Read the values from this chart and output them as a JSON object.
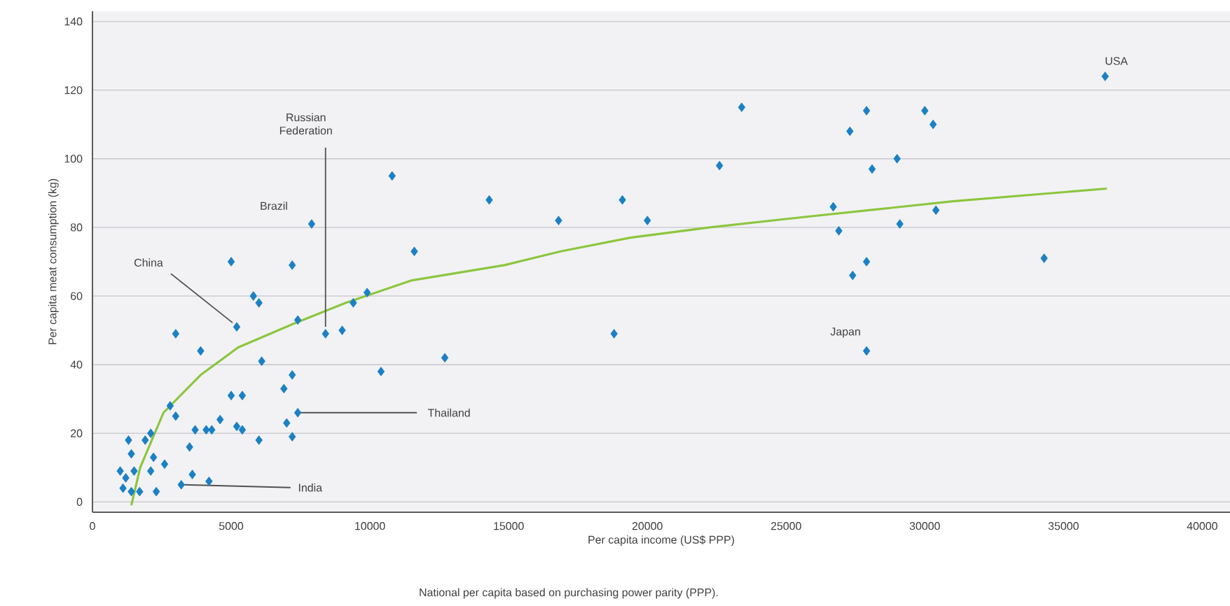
{
  "chart_data": {
    "type": "scatter",
    "xlabel": "Per capita income (US$ PPP)",
    "ylabel": "Per capita meat consumption (kg)",
    "xlim": [
      0,
      41000
    ],
    "ylim": [
      -3,
      143
    ],
    "xticks": [
      0,
      5000,
      10000,
      15000,
      20000,
      25000,
      30000,
      35000,
      40000
    ],
    "yticks": [
      0,
      20,
      40,
      60,
      80,
      100,
      120,
      140
    ],
    "grid": "y",
    "marker": "diamond",
    "series": [
      {
        "color": "#1b80c4",
        "x": [
          10800,
          14300,
          7900,
          11600,
          5000,
          7200,
          5800,
          6000,
          9900,
          9400,
          5200,
          7400,
          8400,
          9000,
          3000,
          3900,
          12700,
          6100,
          10400,
          7200,
          6900,
          5000,
          5400,
          2800,
          3000,
          7400,
          7000,
          7200,
          4600,
          5200,
          5400,
          3700,
          4100,
          4300,
          6000,
          3500,
          2100,
          1900,
          1300,
          1400,
          2200,
          2600,
          1000,
          1200,
          1500,
          3600,
          4200,
          3200,
          2300,
          1100,
          1400,
          1700,
          2100,
          23400,
          22600,
          16800,
          19100,
          20000,
          26700,
          26900,
          36500,
          27900,
          27300,
          30000,
          30300,
          29000,
          28100,
          29100,
          30400,
          27900,
          27400,
          34300,
          27900,
          18800
        ],
        "values": [
          95,
          88,
          81,
          73,
          70,
          69,
          60,
          58,
          61,
          58,
          51,
          53,
          49,
          50,
          49,
          44,
          42,
          41,
          38,
          37,
          33,
          31,
          31,
          28,
          25,
          26,
          23,
          19,
          24,
          22,
          21,
          21,
          21,
          21,
          18,
          16,
          20,
          18,
          18,
          14,
          13,
          11,
          9,
          7,
          9,
          8,
          6,
          5,
          3,
          4,
          3,
          3,
          9,
          115,
          98,
          82,
          88,
          82,
          86,
          79,
          124,
          114,
          108,
          114,
          110,
          100,
          97,
          81,
          85,
          70,
          66,
          71,
          44,
          49
        ]
      },
      {
        "type": "line",
        "color": "#8cc63e",
        "marker": "none",
        "line_style": "solid",
        "x": [
          1400,
          1720,
          2560,
          3900,
          5250,
          7270,
          9130,
          11480,
          14850,
          16870,
          19390,
          22260,
          25620,
          27980,
          31010,
          36560
        ],
        "values": [
          -1,
          10,
          26,
          37,
          45,
          52,
          58,
          64.5,
          69,
          73,
          77,
          80,
          83,
          85,
          87.6,
          91.3
        ]
      }
    ],
    "annotations": [
      {
        "text": "USA",
        "x": 36500,
        "y": 124
      },
      {
        "text": "Russian Federation",
        "x": 8400,
        "y": 49
      },
      {
        "text": "Brazil",
        "x": 7900,
        "y": 81
      },
      {
        "text": "China",
        "x": 5200,
        "y": 51
      },
      {
        "text": "Japan",
        "x": 27900,
        "y": 44
      },
      {
        "text": "Thailand",
        "x": 7400,
        "y": 26
      },
      {
        "text": "India",
        "x": 3200,
        "y": 5
      },
      "National per capita based on purchasing power parity (PPP)."
    ]
  }
}
